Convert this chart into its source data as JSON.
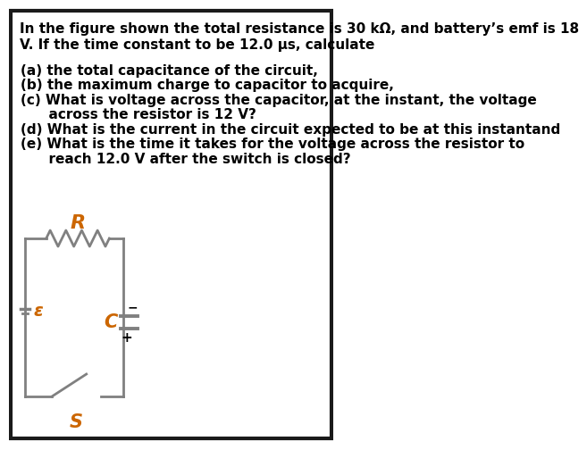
{
  "background_color": "#ffffff",
  "text_color": "#000000",
  "title_line1": "In the figure shown the total resistance is 30 kΩ, and battery’s emf is 18",
  "title_line2": "V. If the time constant to be 12.0 μs, calculate",
  "items": [
    "(a) the total capacitance of the circuit,",
    "(b) the maximum charge to capacitor to acquire,",
    "(c) What is voltage across the capacitor, at the instant, the voltage",
    "      across the resistor is 12 V?",
    "(d) What is the current in the circuit expected to be at this instantand",
    "(e) What is the time it takes for the voltage across the resistor to",
    "      reach 12.0 V after the switch is closed?"
  ],
  "circuit_label_R": "R",
  "circuit_label_C": "C",
  "circuit_label_S": "S",
  "circuit_label_emf": "ε",
  "font_size_main": 11.0,
  "outer_border_color": "#1a1a1a",
  "circuit_color": "#808080",
  "label_color": "#cc6600"
}
